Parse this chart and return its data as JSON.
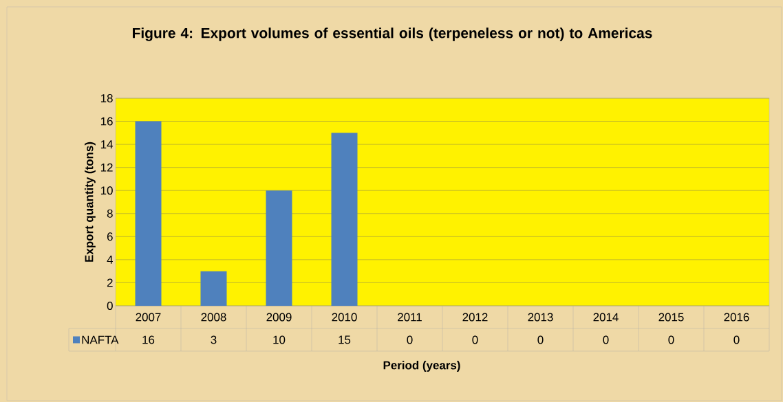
{
  "chart_data": {
    "type": "bar",
    "title": "Figure 4: Export volumes of essential oils (terpeneless or not) to Americas",
    "xlabel": "Period (years)",
    "ylabel": "Export quantity (tons)",
    "categories": [
      "2007",
      "2008",
      "2009",
      "2010",
      "2011",
      "2012",
      "2013",
      "2014",
      "2015",
      "2016"
    ],
    "series": [
      {
        "name": "NAFTA",
        "color": "#4f81bd",
        "values": [
          16,
          3,
          10,
          15,
          0,
          0,
          0,
          0,
          0,
          0
        ]
      }
    ],
    "ylim": [
      0,
      18
    ],
    "yticks": [
      0,
      2,
      4,
      6,
      8,
      10,
      12,
      14,
      16,
      18
    ],
    "grid": "y",
    "legend": "bottom",
    "data_labels": true
  }
}
